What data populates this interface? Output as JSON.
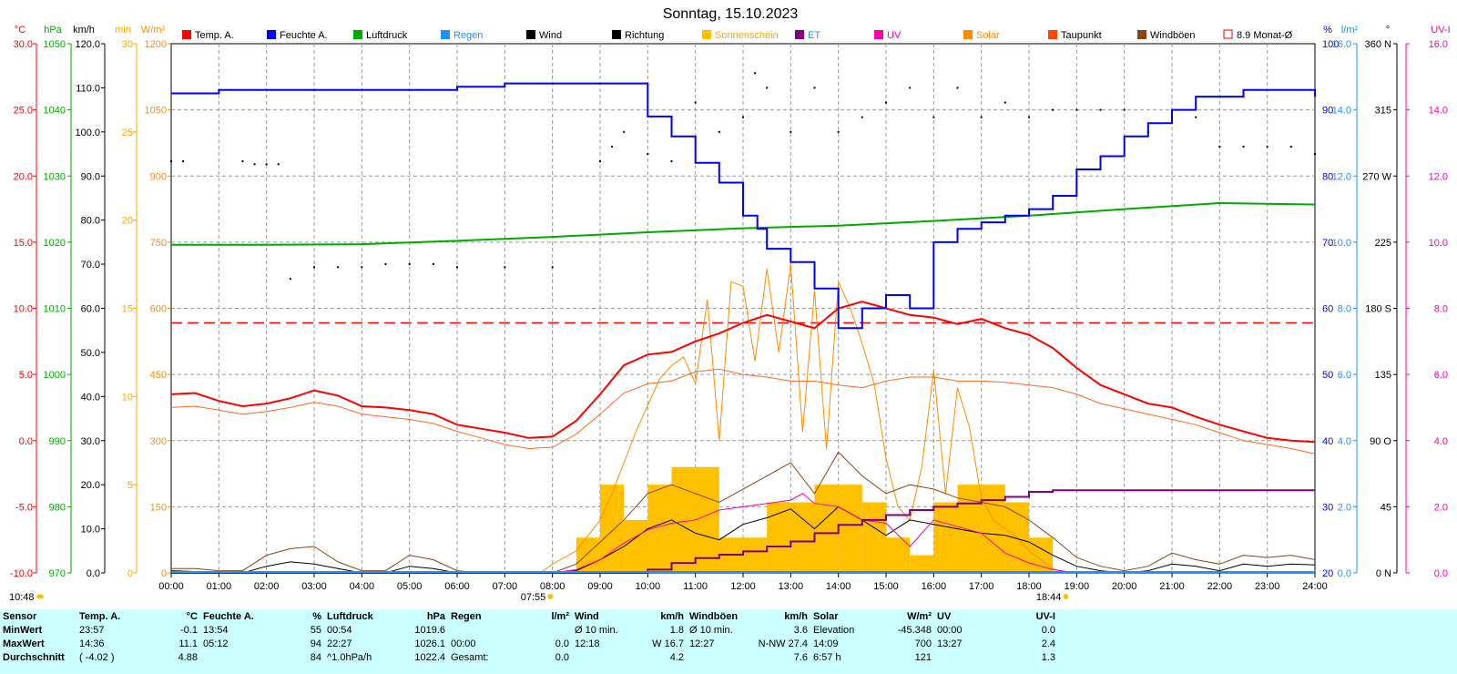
{
  "chart_data": {
    "type": "line",
    "title": "Sonntag, 15.10.2023",
    "x_ticks": [
      "00:00",
      "01:00",
      "02:00",
      "03:00",
      "04:00",
      "05:00",
      "06:00",
      "07:00",
      "08:00",
      "09:00",
      "10:00",
      "11:00",
      "12:00",
      "13:00",
      "14:00",
      "15:00",
      "16:00",
      "17:00",
      "18:00",
      "19:00",
      "20:00",
      "21:00",
      "22:00",
      "23:00",
      "24:00"
    ],
    "sunrise": "07:55",
    "sunset": "18:44",
    "current_time": "10:48",
    "legend": [
      {
        "label": "Temp. A.",
        "color": "#ff0000"
      },
      {
        "label": "Feuchte A.",
        "color": "#0000ff"
      },
      {
        "label": "Luftdruck",
        "color": "#00aa00"
      },
      {
        "label": "Regen",
        "color": "#1e90ff"
      },
      {
        "label": "Wind",
        "color": "#000000"
      },
      {
        "label": "Richtung",
        "color": "#000000"
      },
      {
        "label": "Sonnenschein",
        "color": "#ffc000"
      },
      {
        "label": "ET",
        "color": "#800080"
      },
      {
        "label": "UV",
        "color": "#ff00aa"
      },
      {
        "label": "Solar",
        "color": "#ff8c00"
      },
      {
        "label": "Taupunkt",
        "color": "#ff4500"
      },
      {
        "label": "Windböen",
        "color": "#8b4513"
      },
      {
        "label": "8.9 Monat-Ø",
        "color": "#ff0000"
      }
    ],
    "axes": {
      "temp": {
        "unit": "°C",
        "color": "#ff0000",
        "ticks": [
          "30.0",
          "25.0",
          "20.0",
          "15.0",
          "10.0",
          "5.0",
          "0.0",
          "-5.0",
          "-10.0"
        ]
      },
      "press": {
        "unit": "hPa",
        "color": "#00aa00",
        "ticks": [
          "1050",
          "1040",
          "1030",
          "1020",
          "1010",
          "1000",
          "990",
          "980",
          "970"
        ]
      },
      "wind": {
        "unit": "km/h",
        "color": "#000000",
        "ticks": [
          "120.0",
          "110.0",
          "100.0",
          "90.0",
          "80.0",
          "70.0",
          "60.0",
          "50.0",
          "40.0",
          "30.0",
          "20.0",
          "10.0",
          "0.0"
        ]
      },
      "sunmin": {
        "unit": "min",
        "color": "#ffa500",
        "ticks": [
          "30",
          "25",
          "20",
          "15",
          "10",
          "5",
          "0"
        ]
      },
      "solar": {
        "unit": "W/m²",
        "color": "#ff8c00",
        "ticks": [
          "1200",
          "1050",
          "900",
          "750",
          "600",
          "450",
          "300",
          "150",
          "0"
        ]
      },
      "hum": {
        "unit": "%",
        "color": "#0000ff",
        "ticks": [
          "100",
          "90",
          "80",
          "70",
          "60",
          "50",
          "40",
          "30",
          "20"
        ]
      },
      "rain": {
        "unit": "l/m²",
        "color": "#1e90ff",
        "ticks": [
          "16.0",
          "14.0",
          "12.0",
          "10.0",
          "8.0",
          "6.0",
          "4.0",
          "2.0",
          "0.0"
        ]
      },
      "dir": {
        "unit": "°",
        "color": "#000000",
        "ticks": [
          "360 N",
          "315",
          "270 W",
          "225",
          "180 S",
          "135",
          "90 O",
          "45",
          "0 N"
        ]
      },
      "uv": {
        "unit": "UV-I",
        "color": "#ff00aa",
        "ticks": [
          "16.0",
          "14.0",
          "12.0",
          "10.0",
          "8.0",
          "6.0",
          "4.0",
          "2.0",
          "0.0"
        ]
      }
    },
    "month_avg_temp": 8.9,
    "series": [
      {
        "name": "Temp. A.",
        "axis": "temp",
        "x": [
          0,
          0.5,
          1,
          1.5,
          2,
          2.5,
          3,
          3.5,
          4,
          4.5,
          5,
          5.5,
          6,
          6.5,
          7,
          7.5,
          8,
          8.5,
          9,
          9.5,
          10,
          10.5,
          11,
          11.5,
          12,
          12.5,
          13,
          13.5,
          14,
          14.5,
          15,
          15.5,
          16,
          16.5,
          17,
          17.5,
          18,
          18.5,
          19,
          19.5,
          20,
          20.5,
          21,
          21.5,
          22,
          22.5,
          23,
          23.5,
          24
        ],
        "y": [
          3.5,
          3.6,
          3.0,
          2.6,
          2.8,
          3.2,
          3.8,
          3.4,
          2.6,
          2.5,
          2.3,
          2.0,
          1.2,
          0.9,
          0.6,
          0.2,
          0.3,
          1.5,
          3.5,
          5.7,
          6.5,
          6.7,
          7.5,
          8.1,
          8.9,
          9.5,
          9.0,
          8.5,
          10.0,
          10.5,
          10.0,
          9.5,
          9.3,
          8.8,
          9.2,
          8.5,
          8.0,
          7.0,
          5.5,
          4.2,
          3.5,
          2.8,
          2.5,
          1.8,
          1.2,
          0.7,
          0.2,
          0.0,
          -0.1
        ]
      },
      {
        "name": "Feuchte A.",
        "axis": "hum",
        "x": [
          0,
          1,
          2,
          3,
          4,
          5,
          6,
          7,
          8,
          9,
          9.5,
          10,
          10.5,
          11,
          11.5,
          12,
          12.3,
          12.5,
          13,
          13.5,
          14,
          14.5,
          15,
          15.5,
          16,
          16.5,
          17,
          17.5,
          18,
          18.5,
          19,
          19.5,
          20,
          20.5,
          21,
          21.5,
          22,
          22.5,
          23,
          23.5,
          24
        ],
        "y": [
          92.5,
          93,
          93,
          93,
          93,
          93,
          93.5,
          94,
          94,
          94,
          94,
          89,
          86,
          82,
          79,
          74,
          72,
          69,
          67,
          63,
          57,
          60,
          62,
          60,
          70,
          72,
          73,
          74,
          75,
          77,
          81,
          83,
          86,
          88,
          90,
          92,
          92,
          93,
          93,
          93,
          92
        ]
      },
      {
        "name": "Luftdruck",
        "axis": "press",
        "x": [
          0,
          2,
          4,
          6,
          8,
          10,
          12,
          14,
          16,
          18,
          20,
          22,
          24
        ],
        "y": [
          1019.6,
          1019.6,
          1019.7,
          1020.2,
          1020.8,
          1021.5,
          1022.1,
          1022.5,
          1023.2,
          1024.0,
          1025.0,
          1025.9,
          1025.7
        ]
      },
      {
        "name": "Taupunkt",
        "axis": "temp",
        "x": [
          0,
          0.5,
          1,
          1.5,
          2,
          2.5,
          3,
          3.5,
          4,
          4.5,
          5,
          5.5,
          6,
          6.5,
          7,
          7.5,
          8,
          8.5,
          9,
          9.5,
          10,
          10.5,
          11,
          11.5,
          12,
          12.5,
          13,
          13.5,
          14,
          14.5,
          15,
          15.5,
          16,
          16.5,
          17,
          17.5,
          18,
          18.5,
          19,
          19.5,
          20,
          20.5,
          21,
          21.5,
          22,
          22.5,
          23,
          23.5,
          24
        ],
        "y": [
          2.5,
          2.6,
          2.3,
          2.0,
          2.2,
          2.5,
          2.9,
          2.6,
          2.0,
          1.8,
          1.6,
          1.3,
          0.7,
          0.2,
          -0.3,
          -0.6,
          -0.5,
          0.5,
          2.0,
          3.6,
          4.3,
          4.5,
          5.2,
          5.4,
          5.0,
          4.8,
          4.5,
          4.5,
          4.2,
          4.0,
          4.5,
          4.8,
          4.8,
          4.5,
          4.5,
          4.4,
          4.2,
          4.0,
          3.5,
          2.8,
          2.4,
          2.0,
          1.6,
          1.2,
          0.6,
          0.0,
          -0.3,
          -0.6,
          -1.0
        ]
      },
      {
        "name": "Solar",
        "axis": "solar",
        "x": [
          7.75,
          8,
          8.5,
          9,
          9.25,
          9.5,
          9.75,
          10,
          10.25,
          10.5,
          10.75,
          11,
          11.25,
          11.5,
          11.75,
          12,
          12.25,
          12.5,
          12.75,
          13,
          13.25,
          13.5,
          13.75,
          14,
          14.25,
          14.5,
          14.75,
          15,
          15.25,
          15.5,
          15.75,
          16,
          16.25,
          16.5,
          16.75,
          17,
          17.25,
          17.5,
          17.75,
          18,
          18.25,
          18.5,
          18.75
        ],
        "y": [
          0,
          20,
          50,
          120,
          180,
          250,
          320,
          380,
          440,
          470,
          490,
          430,
          620,
          300,
          660,
          650,
          480,
          690,
          500,
          700,
          320,
          640,
          280,
          660,
          600,
          520,
          430,
          260,
          150,
          120,
          240,
          460,
          180,
          420,
          330,
          170,
          120,
          100,
          80,
          50,
          30,
          10,
          0
        ]
      },
      {
        "name": "Sonnenschein",
        "axis": "sunmin",
        "x": [
          8,
          8.5,
          9,
          9.5,
          10,
          10.5,
          11,
          11.5,
          12,
          12.5,
          13,
          13.5,
          14,
          14.5,
          15,
          15.5,
          16,
          16.5,
          17,
          17.5,
          18
        ],
        "y": [
          0,
          2,
          5,
          3,
          5,
          6,
          6,
          2,
          2,
          4,
          4,
          5,
          5,
          4,
          2,
          1,
          4,
          5,
          5,
          4,
          2
        ]
      },
      {
        "name": "Wind",
        "axis": "wind",
        "x": [
          0,
          0.5,
          1,
          1.5,
          2,
          2.5,
          3,
          3.5,
          4,
          4.5,
          5,
          5.5,
          6,
          6.5,
          7,
          7.5,
          8,
          8.5,
          9,
          9.5,
          10,
          10.5,
          11,
          11.5,
          12,
          12.5,
          13,
          13.5,
          14,
          14.5,
          15,
          15.5,
          16,
          16.5,
          17,
          17.5,
          18,
          18.5,
          19,
          19.5,
          20,
          20.5,
          21,
          21.5,
          22,
          22.5,
          23,
          23.5,
          24
        ],
        "y": [
          0.5,
          0.3,
          0,
          0,
          1.5,
          2.5,
          2.0,
          1.0,
          0,
          0,
          1.5,
          1.0,
          0,
          0,
          0,
          0,
          0,
          0.5,
          3.0,
          6.0,
          10.0,
          12.0,
          9.0,
          7.5,
          11.0,
          12.5,
          14.5,
          10.0,
          15.0,
          12.0,
          8.5,
          12.0,
          11.0,
          10.0,
          9.0,
          8.5,
          7.0,
          4.0,
          1.5,
          0.5,
          0,
          0.5,
          2.0,
          1.5,
          0.5,
          2.0,
          1.5,
          2.0,
          1.8
        ]
      },
      {
        "name": "Windböen",
        "axis": "wind",
        "x": [
          0,
          0.5,
          1,
          1.5,
          2,
          2.5,
          3,
          3.5,
          4,
          4.5,
          5,
          5.5,
          6,
          6.5,
          7,
          7.5,
          8,
          8.5,
          9,
          9.5,
          10,
          10.5,
          11,
          11.5,
          12,
          12.5,
          13,
          13.5,
          14,
          14.5,
          15,
          15.5,
          16,
          16.5,
          17,
          17.5,
          18,
          18.5,
          19,
          19.5,
          20,
          20.5,
          21,
          21.5,
          22,
          22.5,
          23,
          23.5,
          24
        ],
        "y": [
          1.0,
          1.0,
          0.5,
          0.5,
          4.0,
          5.5,
          6.0,
          2.5,
          0.5,
          0.5,
          4.0,
          3.0,
          0.5,
          0,
          0,
          0,
          0,
          2.0,
          7.0,
          12.0,
          18.0,
          20.0,
          18.0,
          16.0,
          19.0,
          22.0,
          25.0,
          18.0,
          27.4,
          22.0,
          18.0,
          20.0,
          19.0,
          17.0,
          16.0,
          15.0,
          12.0,
          8.0,
          3.5,
          1.5,
          0.5,
          1.5,
          4.5,
          3.0,
          2.0,
          4.0,
          3.5,
          4.0,
          3.0
        ]
      },
      {
        "name": "UV",
        "axis": "uv",
        "x": [
          8,
          8.5,
          9,
          9.5,
          10,
          10.5,
          11,
          11.5,
          12,
          12.5,
          13,
          13.25,
          13.5,
          14,
          14.5,
          15,
          15.5,
          16,
          16.5,
          17,
          17.5,
          18,
          18.5,
          19
        ],
        "y": [
          0,
          0.1,
          0.4,
          0.9,
          1.3,
          1.5,
          1.6,
          1.9,
          2.0,
          2.1,
          2.2,
          2.4,
          2.1,
          2.0,
          1.6,
          1.5,
          0.8,
          1.6,
          1.4,
          1.2,
          0.6,
          0.3,
          0.1,
          0
        ]
      },
      {
        "name": "ET",
        "axis": "uv",
        "x": [
          0,
          9.5,
          10,
          10.5,
          11,
          11.5,
          12,
          12.5,
          13,
          13.5,
          14,
          14.5,
          15,
          15.5,
          16,
          16.5,
          17,
          17.5,
          18,
          18.5,
          19,
          20,
          21,
          22,
          23,
          24
        ],
        "y": [
          0,
          0,
          0.1,
          0.3,
          0.45,
          0.55,
          0.65,
          0.8,
          0.95,
          1.2,
          1.45,
          1.6,
          1.75,
          1.9,
          2.0,
          2.1,
          2.2,
          2.3,
          2.45,
          2.5,
          2.5,
          2.5,
          2.5,
          2.5,
          2.5,
          2.5
        ]
      },
      {
        "name": "Richtung",
        "axis": "dir",
        "x": [
          0,
          0.25,
          1.5,
          1.75,
          2,
          2.25,
          2.5,
          3,
          3.5,
          4,
          4.5,
          5,
          5.5,
          6,
          7,
          8,
          9,
          9.25,
          9.5,
          10,
          10.5,
          11,
          11.5,
          12,
          12.25,
          12.5,
          13,
          13.5,
          14,
          14.5,
          15,
          15.5,
          16,
          16.5,
          17,
          17.5,
          18,
          18.5,
          19,
          19.5,
          20,
          20.5,
          21,
          21.5,
          22,
          22.5,
          23,
          23.5,
          24
        ],
        "y": [
          280,
          280,
          280,
          278,
          278,
          278,
          200,
          208,
          208,
          208,
          210,
          210,
          210,
          208,
          208,
          208,
          280,
          290,
          300,
          285,
          280,
          320,
          300,
          310,
          340,
          330,
          300,
          330,
          300,
          310,
          320,
          330,
          310,
          330,
          310,
          320,
          310,
          315,
          315,
          315,
          315,
          300,
          310,
          310,
          290,
          290,
          290,
          290,
          285
        ]
      }
    ]
  },
  "summary": {
    "labels": [
      "Sensor",
      "MinWert",
      "MaxWert",
      "Durchschnitt"
    ],
    "columns": [
      {
        "header": "Temp. A.",
        "unit": "°C",
        "rows": [
          [
            "23:57",
            "-0.1"
          ],
          [
            "14:36",
            "11.1"
          ],
          [
            "( -4.02 )",
            "4.88"
          ]
        ]
      },
      {
        "header": "Feuchte A.",
        "unit": "%",
        "rows": [
          [
            "13:54",
            "55"
          ],
          [
            "05:12",
            "94"
          ],
          [
            "",
            "84"
          ]
        ]
      },
      {
        "header": "Luftdruck",
        "unit": "hPa",
        "rows": [
          [
            "00:54",
            "1019.6"
          ],
          [
            "22:27",
            "1026.1"
          ],
          [
            "^1.0hPa/h",
            "1022.4"
          ]
        ]
      },
      {
        "header": "Regen",
        "unit": "l/m²",
        "rows": [
          [
            "",
            ""
          ],
          [
            "00:00",
            "0.0"
          ],
          [
            "Gesamt:",
            "0.0"
          ]
        ]
      },
      {
        "header": "Wind",
        "unit": "km/h",
        "rows": [
          [
            "Ø 10 min.",
            "1.8"
          ],
          [
            "12:18",
            "W 16.7"
          ],
          [
            "",
            "4.2"
          ]
        ]
      },
      {
        "header": "Windböen",
        "unit": "km/h",
        "rows": [
          [
            "Ø 10 min.",
            "3.6"
          ],
          [
            "12:27",
            "N-NW 27.4"
          ],
          [
            "",
            "7.6"
          ]
        ]
      },
      {
        "header": "Solar",
        "unit": "W/m²",
        "rows": [
          [
            "Elevation",
            "-45.348"
          ],
          [
            "14:09",
            "700"
          ],
          [
            "6:57 h",
            "121"
          ]
        ]
      },
      {
        "header": "UV",
        "unit": "UV-I",
        "rows": [
          [
            "00:00",
            "0.0"
          ],
          [
            "13:27",
            "2.4"
          ],
          [
            "",
            "1.3"
          ]
        ]
      }
    ]
  }
}
